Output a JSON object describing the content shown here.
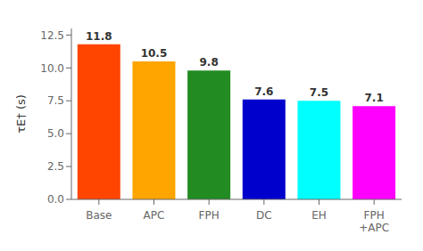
{
  "chart_data": {
    "type": "bar",
    "categories": [
      "Base",
      "APC",
      "FPH",
      "DC",
      "EH",
      "FPH\n+APC"
    ],
    "values": [
      11.8,
      10.5,
      9.8,
      7.6,
      7.5,
      7.1
    ],
    "colors": [
      "#ff4500",
      "#ffa500",
      "#228b22",
      "#0000cd",
      "#00ffff",
      "#ff00ff"
    ],
    "ylabel": "τE† (s)",
    "ylim": [
      0,
      13.0
    ],
    "yticks": [
      {
        "value": 0,
        "label": "0.0"
      },
      2.5,
      {
        "value": 5,
        "label": "5.0"
      },
      7.5,
      {
        "value": 10,
        "label": "10.0"
      },
      12.5
    ],
    "data_labels": true,
    "grid": false
  }
}
